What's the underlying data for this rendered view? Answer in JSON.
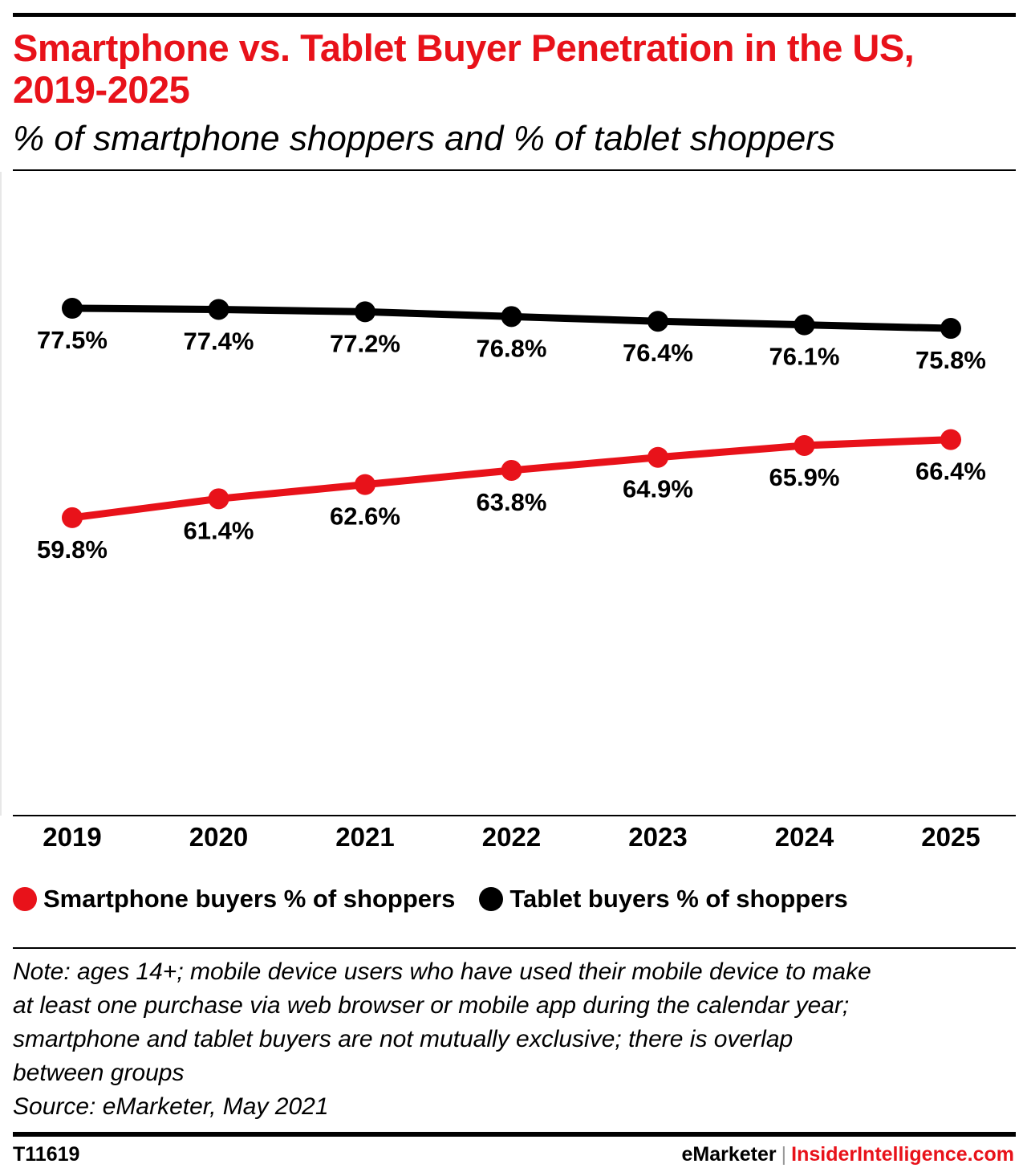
{
  "header": {
    "title": "Smartphone vs. Tablet Buyer Penetration in the US, 2019-2025",
    "subtitle": "% of smartphone shoppers and % of tablet shoppers"
  },
  "colors": {
    "accent": "#e8121a",
    "tablet": "#000000",
    "divider": "#000000"
  },
  "chart_data": {
    "type": "line",
    "x": [
      "2019",
      "2020",
      "2021",
      "2022",
      "2023",
      "2024",
      "2025"
    ],
    "series": [
      {
        "name": "Tablet buyers % of shoppers",
        "color": "#000000",
        "values": [
          77.5,
          77.4,
          77.2,
          76.8,
          76.4,
          76.1,
          75.8
        ],
        "labels": [
          "77.5%",
          "77.4%",
          "77.2%",
          "76.8%",
          "76.4%",
          "76.1%",
          "75.8%"
        ]
      },
      {
        "name": "Smartphone buyers % of shoppers",
        "color": "#e8121a",
        "values": [
          59.8,
          61.4,
          62.6,
          63.8,
          64.9,
          65.9,
          66.4
        ],
        "labels": [
          "59.8%",
          "61.4%",
          "62.6%",
          "63.8%",
          "64.9%",
          "65.9%",
          "66.4%"
        ]
      }
    ],
    "legend_position": "bottom",
    "grid": false,
    "title": "",
    "xlabel": "",
    "ylabel": ""
  },
  "legend": [
    {
      "label": "Smartphone buyers % of shoppers",
      "color": "#e8121a"
    },
    {
      "label": "Tablet buyers % of shoppers",
      "color": "#000000"
    }
  ],
  "note": {
    "lines": [
      "Note: ages 14+; mobile device users who have used their mobile device to make",
      "at least one purchase via web browser or mobile app during the calendar year;",
      "smartphone and tablet buyers are not mutually exclusive; there is overlap",
      "between groups",
      "Source: eMarketer, May 2021"
    ]
  },
  "footer": {
    "chart_id": "T11619",
    "brand_emarketer": "eMarketer",
    "brand_separator": "|",
    "brand_insider": "InsiderIntelligence.com"
  }
}
